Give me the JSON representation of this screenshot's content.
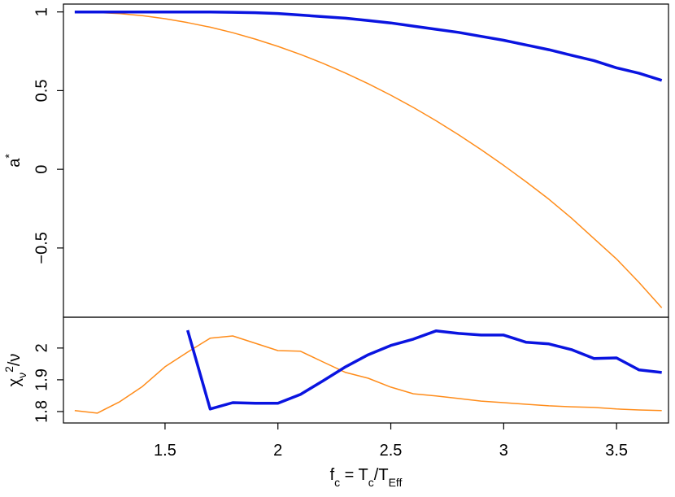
{
  "chart_data": [
    {
      "type": "line",
      "ylabel": [
        "a",
        "*"
      ],
      "x": [
        1.1,
        1.2,
        1.3,
        1.4,
        1.5,
        1.6,
        1.7,
        1.8,
        1.9,
        2.0,
        2.1,
        2.2,
        2.3,
        2.4,
        2.5,
        2.6,
        2.7,
        2.8,
        2.9,
        3.0,
        3.1,
        3.2,
        3.3,
        3.4,
        3.5,
        3.6,
        3.7
      ],
      "series": [
        {
          "color": "#ff8c1a",
          "values": [
            1.0,
            0.997,
            0.989,
            0.976,
            0.957,
            0.932,
            0.903,
            0.868,
            0.827,
            0.781,
            0.73,
            0.673,
            0.611,
            0.544,
            0.471,
            0.393,
            0.309,
            0.22,
            0.125,
            0.025,
            -0.08,
            -0.19,
            -0.31,
            -0.44,
            -0.57,
            -0.72,
            -0.88
          ]
        },
        {
          "color": "#0a14e0",
          "values": [
            1,
            1,
            1,
            1,
            1,
            1,
            1,
            0.998,
            0.995,
            0.99,
            0.98,
            0.97,
            0.96,
            0.945,
            0.93,
            0.91,
            0.89,
            0.87,
            0.845,
            0.82,
            0.79,
            0.76,
            0.725,
            0.69,
            0.645,
            0.61,
            0.565
          ]
        }
      ],
      "xlim": [
        1.05,
        3.73
      ],
      "ylim": [
        -0.94,
        1.05
      ],
      "yticks": [
        {
          "value": -0.5,
          "label": "−0.5"
        },
        0,
        0.5,
        1
      ]
    },
    {
      "type": "line",
      "ylabel": [
        "χ",
        "ν",
        "2",
        "/ν"
      ],
      "xlabel": [
        "f",
        "c",
        " = T",
        "c",
        "/T",
        "Eff"
      ],
      "x": [
        1.1,
        1.2,
        1.3,
        1.4,
        1.5,
        1.6,
        1.7,
        1.8,
        1.9,
        2.0,
        2.1,
        2.2,
        2.3,
        2.4,
        2.5,
        2.6,
        2.7,
        2.8,
        2.9,
        3.0,
        3.1,
        3.2,
        3.3,
        3.4,
        3.5,
        3.6,
        3.7
      ],
      "series": [
        {
          "color": "#ff8c1a",
          "values": [
            1.803,
            1.795,
            1.831,
            1.879,
            1.941,
            1.987,
            2.031,
            2.038,
            2.015,
            1.992,
            1.99,
            1.956,
            1.923,
            1.905,
            1.877,
            1.856,
            1.849,
            1.841,
            1.833,
            1.828,
            1.823,
            1.818,
            1.815,
            1.813,
            1.808,
            1.805,
            1.803
          ]
        },
        {
          "color": "#0a14e0",
          "values": [
            null,
            null,
            null,
            null,
            null,
            2.056,
            1.808,
            1.828,
            1.826,
            1.826,
            1.854,
            1.897,
            1.941,
            1.979,
            2.008,
            2.028,
            2.054,
            2.046,
            2.041,
            2.041,
            2.018,
            2.013,
            1.995,
            1.967,
            1.969,
            1.931,
            1.923
          ]
        }
      ],
      "xlim": [
        1.05,
        3.73
      ],
      "ylim": [
        1.764,
        2.097
      ],
      "xticks": [
        1.5,
        2,
        2.5,
        3,
        3.5
      ],
      "yticks": [
        1.8,
        1.9,
        2
      ]
    }
  ]
}
